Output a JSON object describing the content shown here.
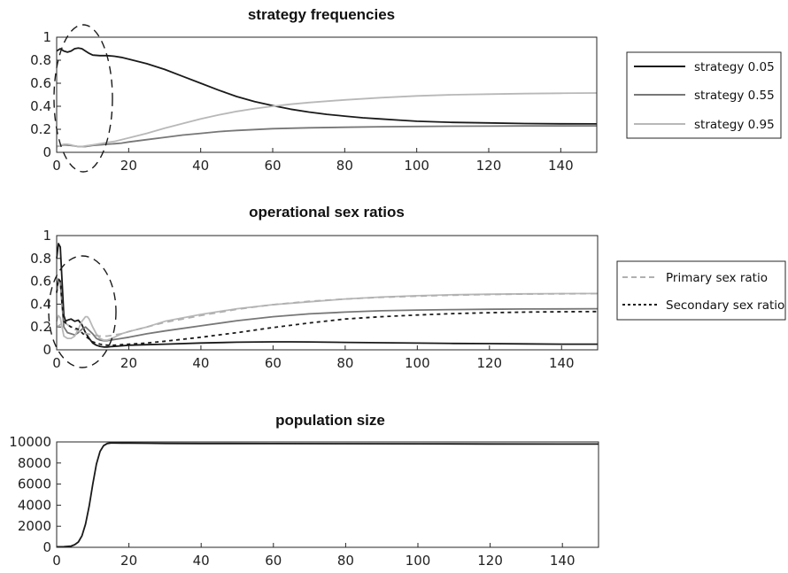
{
  "chart_data": [
    {
      "type": "line",
      "title": "strategy frequencies",
      "xlim": [
        0,
        150
      ],
      "ylim": [
        0,
        1
      ],
      "xticks": [
        "0",
        "20",
        "40",
        "60",
        "80",
        "100",
        "120",
        "140"
      ],
      "yticks": [
        "0",
        "0.2",
        "0.4",
        "0.6",
        "0.8",
        "1"
      ],
      "grid": false,
      "legend_position": "right",
      "series": [
        {
          "name": "strategy 0.05",
          "color": "#1a1a1a",
          "dash": "solid",
          "x": [
            0,
            1,
            2,
            3,
            4,
            5,
            6,
            7,
            8,
            9,
            10,
            12,
            14,
            16,
            18,
            20,
            25,
            30,
            35,
            40,
            45,
            50,
            55,
            60,
            65,
            70,
            75,
            80,
            85,
            90,
            95,
            100,
            110,
            120,
            130,
            140,
            150
          ],
          "y": [
            0.88,
            0.9,
            0.88,
            0.87,
            0.88,
            0.9,
            0.905,
            0.9,
            0.88,
            0.86,
            0.845,
            0.84,
            0.84,
            0.835,
            0.825,
            0.81,
            0.77,
            0.72,
            0.66,
            0.6,
            0.54,
            0.485,
            0.44,
            0.405,
            0.375,
            0.35,
            0.33,
            0.315,
            0.3,
            0.29,
            0.28,
            0.27,
            0.26,
            0.255,
            0.25,
            0.248,
            0.247
          ]
        },
        {
          "name": "strategy 0.55",
          "color": "#777777",
          "dash": "solid",
          "x": [
            0,
            2,
            4,
            6,
            8,
            10,
            12,
            14,
            16,
            18,
            20,
            25,
            30,
            35,
            40,
            45,
            50,
            55,
            60,
            70,
            80,
            90,
            100,
            110,
            120,
            130,
            140,
            150
          ],
          "y": [
            0.05,
            0.065,
            0.06,
            0.05,
            0.05,
            0.06,
            0.065,
            0.07,
            0.075,
            0.08,
            0.09,
            0.11,
            0.13,
            0.15,
            0.165,
            0.18,
            0.19,
            0.198,
            0.205,
            0.213,
            0.218,
            0.222,
            0.225,
            0.227,
            0.228,
            0.229,
            0.229,
            0.23
          ]
        },
        {
          "name": "strategy 0.95",
          "color": "#b8b8b8",
          "dash": "solid",
          "x": [
            0,
            1,
            2,
            3,
            4,
            5,
            6,
            7,
            8,
            10,
            12,
            14,
            16,
            18,
            20,
            25,
            30,
            35,
            40,
            45,
            50,
            55,
            60,
            65,
            70,
            80,
            90,
            100,
            110,
            120,
            130,
            140,
            150
          ],
          "y": [
            0.05,
            0.06,
            0.07,
            0.07,
            0.065,
            0.055,
            0.05,
            0.05,
            0.055,
            0.065,
            0.075,
            0.085,
            0.095,
            0.11,
            0.125,
            0.165,
            0.21,
            0.25,
            0.29,
            0.325,
            0.355,
            0.38,
            0.4,
            0.418,
            0.432,
            0.455,
            0.475,
            0.49,
            0.5,
            0.505,
            0.51,
            0.513,
            0.515
          ]
        }
      ],
      "annotation": "dashed ellipse highlighting x 0 to 15"
    },
    {
      "type": "line",
      "title": "operational sex ratios",
      "xlim": [
        0,
        150
      ],
      "ylim": [
        0,
        1
      ],
      "xticks": [
        "0",
        "20",
        "40",
        "60",
        "80",
        "100",
        "120",
        "140"
      ],
      "yticks": [
        "0",
        "0.2",
        "0.4",
        "0.6",
        "0.8",
        "1"
      ],
      "grid": false,
      "legend_position": "right",
      "legend": [
        {
          "name": "Primary sex ratio",
          "color": "#b0b0b0",
          "dash": "dashed"
        },
        {
          "name": "Secondary sex ratio",
          "color": "#1a1a1a",
          "dash": "dotted"
        }
      ],
      "series": [
        {
          "color": "#1a1a1a",
          "dash": "solid",
          "x": [
            0,
            0.5,
            1,
            1.5,
            2,
            2.5,
            3,
            4,
            5,
            6,
            7,
            8,
            9,
            10,
            11,
            12,
            13,
            14,
            15,
            16,
            18,
            20,
            25,
            30,
            40,
            50,
            60,
            65,
            70,
            80,
            90,
            100,
            110,
            120,
            130,
            140,
            150
          ],
          "y": [
            0.8,
            0.93,
            0.9,
            0.6,
            0.3,
            0.25,
            0.26,
            0.27,
            0.25,
            0.26,
            0.22,
            0.15,
            0.1,
            0.06,
            0.04,
            0.03,
            0.025,
            0.025,
            0.028,
            0.03,
            0.035,
            0.04,
            0.045,
            0.05,
            0.06,
            0.067,
            0.07,
            0.07,
            0.069,
            0.065,
            0.062,
            0.059,
            0.056,
            0.054,
            0.052,
            0.05,
            0.05
          ]
        },
        {
          "color": "#777777",
          "dash": "solid",
          "x": [
            0,
            0.5,
            1,
            1.5,
            2,
            3,
            4,
            5,
            6,
            7,
            8,
            9,
            10,
            11,
            12,
            13,
            14,
            15,
            16,
            18,
            20,
            25,
            30,
            40,
            50,
            60,
            70,
            80,
            90,
            100,
            110,
            120,
            130,
            140,
            150
          ],
          "y": [
            0.5,
            0.62,
            0.6,
            0.4,
            0.2,
            0.15,
            0.14,
            0.13,
            0.15,
            0.18,
            0.2,
            0.17,
            0.14,
            0.1,
            0.085,
            0.08,
            0.08,
            0.085,
            0.09,
            0.1,
            0.11,
            0.14,
            0.165,
            0.21,
            0.255,
            0.29,
            0.315,
            0.33,
            0.342,
            0.348,
            0.352,
            0.355,
            0.357,
            0.358,
            0.36
          ]
        },
        {
          "color": "#b8b8b8",
          "dash": "solid",
          "x": [
            0,
            0.5,
            1,
            1.5,
            2,
            3,
            4,
            5,
            6,
            7,
            8,
            8.5,
            9,
            10,
            11,
            12,
            13,
            14,
            15,
            16,
            18,
            20,
            25,
            30,
            40,
            50,
            60,
            70,
            80,
            90,
            100,
            110,
            120,
            130,
            140,
            150
          ],
          "y": [
            0.25,
            0.3,
            0.28,
            0.2,
            0.12,
            0.1,
            0.1,
            0.12,
            0.18,
            0.25,
            0.29,
            0.29,
            0.27,
            0.2,
            0.14,
            0.1,
            0.085,
            0.085,
            0.095,
            0.11,
            0.14,
            0.16,
            0.2,
            0.25,
            0.31,
            0.36,
            0.395,
            0.42,
            0.445,
            0.462,
            0.474,
            0.482,
            0.487,
            0.49,
            0.492,
            0.493
          ]
        },
        {
          "name": "Primary sex ratio",
          "color": "#b0b0b0",
          "dash": "dashed",
          "x": [
            0,
            1,
            2,
            3,
            5,
            7,
            10,
            12,
            14,
            16,
            18,
            20,
            25,
            30,
            40,
            50,
            60,
            70,
            80,
            90,
            100,
            110,
            120,
            130,
            140,
            150
          ],
          "y": [
            0.2,
            0.22,
            0.24,
            0.22,
            0.18,
            0.15,
            0.13,
            0.12,
            0.12,
            0.13,
            0.14,
            0.16,
            0.2,
            0.24,
            0.3,
            0.355,
            0.395,
            0.425,
            0.445,
            0.46,
            0.47,
            0.478,
            0.484,
            0.488,
            0.49,
            0.492
          ]
        },
        {
          "name": "Secondary sex ratio",
          "color": "#1a1a1a",
          "dash": "dotted",
          "x": [
            0,
            0.5,
            1,
            1.5,
            2,
            3,
            4,
            5,
            6,
            7,
            8,
            10,
            12,
            14,
            16,
            18,
            20,
            25,
            30,
            40,
            50,
            60,
            70,
            80,
            90,
            100,
            110,
            120,
            130,
            140,
            150
          ],
          "y": [
            0.5,
            0.62,
            0.6,
            0.4,
            0.25,
            0.22,
            0.2,
            0.19,
            0.18,
            0.15,
            0.12,
            0.07,
            0.05,
            0.04,
            0.04,
            0.045,
            0.05,
            0.06,
            0.075,
            0.11,
            0.15,
            0.195,
            0.235,
            0.27,
            0.29,
            0.305,
            0.317,
            0.325,
            0.33,
            0.333,
            0.335
          ]
        }
      ],
      "annotation": "dashed ellipse highlighting x 0 to 15"
    },
    {
      "type": "line",
      "title": "population size",
      "xlim": [
        0,
        150
      ],
      "ylim": [
        0,
        10000
      ],
      "xticks": [
        "0",
        "20",
        "40",
        "60",
        "80",
        "100",
        "120",
        "140"
      ],
      "yticks": [
        "0",
        "2000",
        "4000",
        "6000",
        "8000",
        "10000"
      ],
      "grid": false,
      "series": [
        {
          "color": "#1a1a1a",
          "dash": "solid",
          "x": [
            0,
            2,
            4,
            5,
            6,
            7,
            8,
            9,
            10,
            11,
            12,
            13,
            14,
            15,
            16,
            18,
            20,
            25,
            30,
            40,
            60,
            80,
            100,
            120,
            140,
            150
          ],
          "y": [
            50,
            60,
            120,
            250,
            500,
            1100,
            2200,
            3900,
            6000,
            7900,
            9100,
            9650,
            9850,
            9900,
            9900,
            9890,
            9880,
            9870,
            9860,
            9850,
            9840,
            9830,
            9820,
            9810,
            9800,
            9800
          ]
        }
      ]
    }
  ]
}
